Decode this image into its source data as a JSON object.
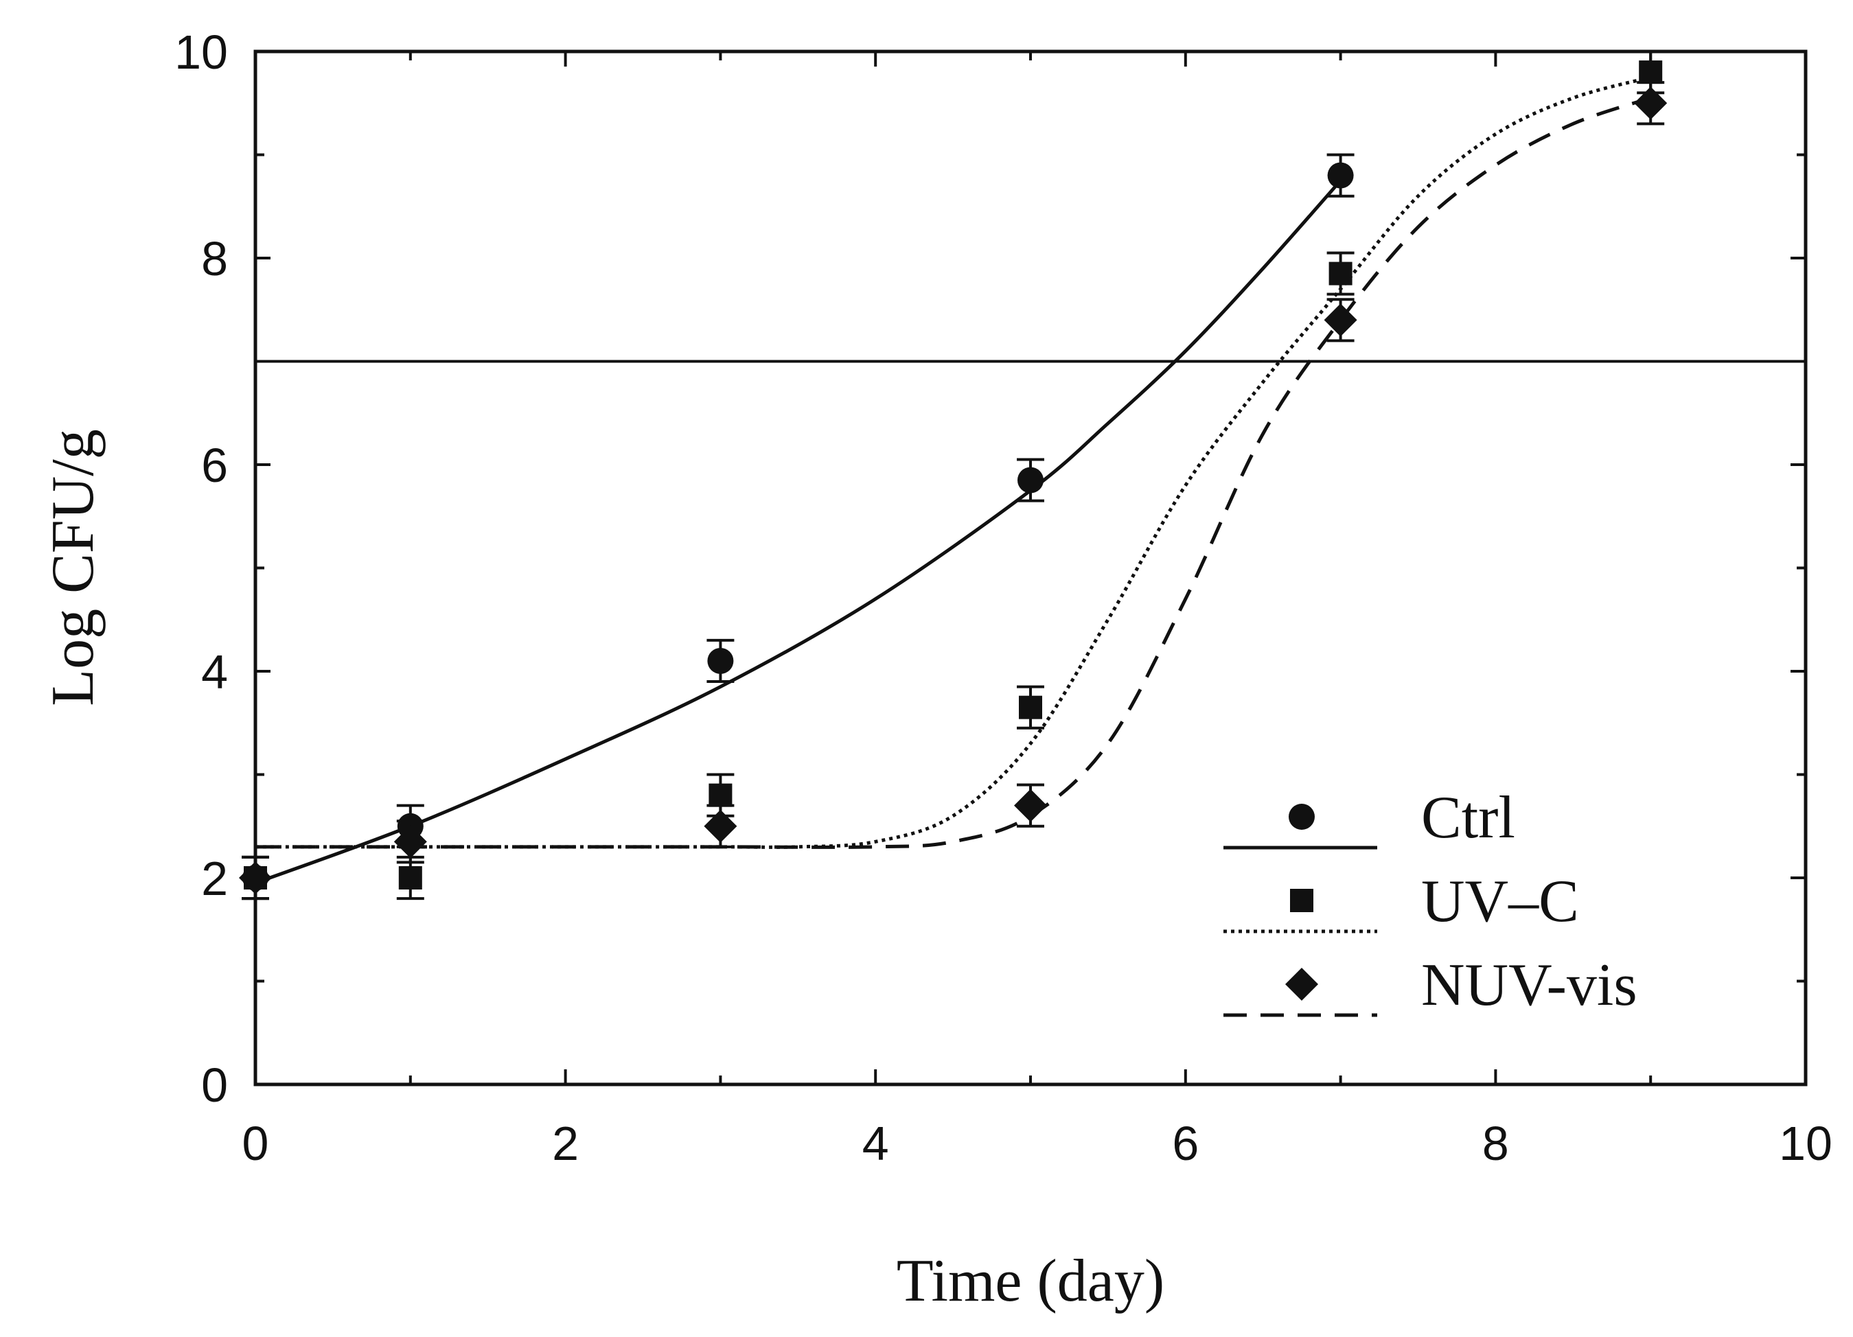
{
  "chart_data": {
    "type": "scatter",
    "xlabel": "Time (day)",
    "ylabel": "Log CFU/g",
    "xlim": [
      0,
      10
    ],
    "ylim": [
      0,
      10
    ],
    "x_ticks": [
      0,
      2,
      4,
      6,
      8,
      10
    ],
    "y_ticks": [
      0,
      2,
      4,
      6,
      8,
      10
    ],
    "x_tick_labels": [
      "0",
      "2",
      "4",
      "6",
      "8",
      "10"
    ],
    "y_tick_labels": [
      "0",
      "2",
      "4",
      "6",
      "8",
      "10"
    ],
    "grid": false,
    "reference_line": {
      "y": 7
    },
    "legend_position": "bottom-right",
    "series": [
      {
        "name": "Ctrl",
        "marker": "circle",
        "line_style": "solid",
        "x": [
          0,
          1,
          3,
          5,
          7
        ],
        "y": [
          2.0,
          2.5,
          4.1,
          5.85,
          8.8
        ],
        "error": [
          0.2,
          0.2,
          0.2,
          0.2,
          0.2
        ],
        "fit": {
          "x": [
            0,
            1,
            2,
            3,
            4,
            5,
            5.5,
            6,
            6.5,
            7
          ],
          "y": [
            1.95,
            2.5,
            3.15,
            3.85,
            4.7,
            5.75,
            6.4,
            7.1,
            7.9,
            8.75
          ]
        }
      },
      {
        "name": "UV–C",
        "marker": "square",
        "line_style": "dotted",
        "x": [
          0,
          1,
          3,
          5,
          7,
          9
        ],
        "y": [
          2.0,
          2.0,
          2.8,
          3.65,
          7.85,
          9.8
        ],
        "error": [
          0.2,
          0.2,
          0.2,
          0.2,
          0.2,
          0.2
        ],
        "fit": {
          "x": [
            0,
            1,
            2,
            3,
            3.5,
            4,
            4.5,
            5,
            5.5,
            6,
            6.5,
            7,
            7.5,
            8,
            8.5,
            9
          ],
          "y": [
            2.3,
            2.3,
            2.3,
            2.3,
            2.3,
            2.35,
            2.6,
            3.3,
            4.5,
            5.8,
            6.8,
            7.7,
            8.6,
            9.2,
            9.55,
            9.75
          ]
        }
      },
      {
        "name": "NUV-vis",
        "marker": "diamond",
        "line_style": "dashed",
        "x": [
          0,
          1,
          3,
          5,
          7,
          9
        ],
        "y": [
          2.0,
          2.35,
          2.5,
          2.7,
          7.4,
          9.5
        ],
        "error": [
          0.2,
          0.2,
          0.2,
          0.2,
          0.2,
          0.2
        ],
        "fit": {
          "x": [
            0,
            1,
            2,
            3,
            4,
            4.5,
            5,
            5.5,
            6,
            6.5,
            7,
            7.5,
            8,
            8.5,
            9
          ],
          "y": [
            2.3,
            2.3,
            2.3,
            2.3,
            2.3,
            2.35,
            2.6,
            3.3,
            4.7,
            6.3,
            7.4,
            8.3,
            8.9,
            9.3,
            9.55
          ]
        }
      }
    ]
  }
}
